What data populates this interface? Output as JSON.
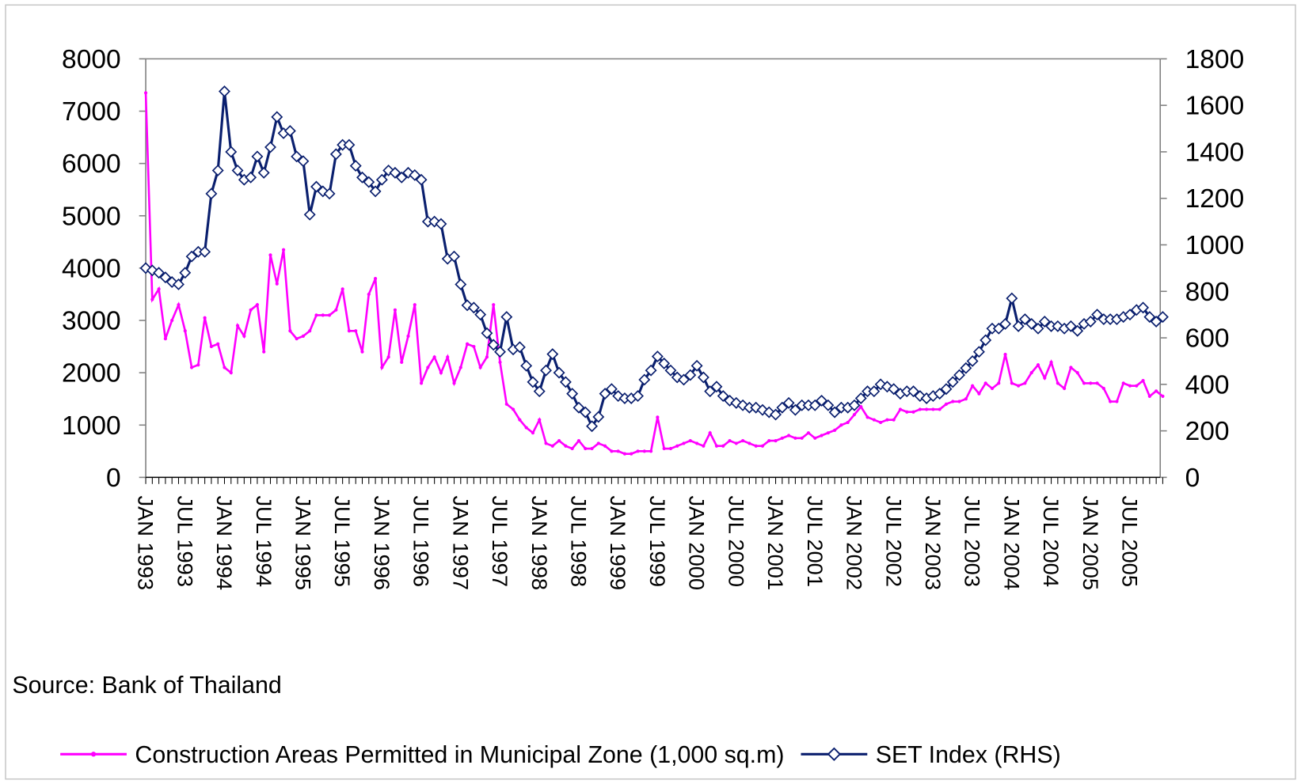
{
  "chart_data": {
    "type": "line",
    "source": "Source: Bank of Thailand",
    "categories": [
      "JAN 1993",
      null,
      null,
      null,
      null,
      null,
      "JUL 1993",
      null,
      null,
      null,
      null,
      null,
      "JAN 1994",
      null,
      null,
      null,
      null,
      null,
      "JUL 1994",
      null,
      null,
      null,
      null,
      null,
      "JAN 1995",
      null,
      null,
      null,
      null,
      null,
      "JUL 1995",
      null,
      null,
      null,
      null,
      null,
      "JAN 1996",
      null,
      null,
      null,
      null,
      null,
      "JUL 1996",
      null,
      null,
      null,
      null,
      null,
      "JAN 1997",
      null,
      null,
      null,
      null,
      null,
      "JUL 1997",
      null,
      null,
      null,
      null,
      null,
      "JAN 1998",
      null,
      null,
      null,
      null,
      null,
      "JUL 1998",
      null,
      null,
      null,
      null,
      null,
      "JAN 1999",
      null,
      null,
      null,
      null,
      null,
      "JUL 1999",
      null,
      null,
      null,
      null,
      null,
      "JAN 2000",
      null,
      null,
      null,
      null,
      null,
      "JUL 2000",
      null,
      null,
      null,
      null,
      null,
      "JAN 2001",
      null,
      null,
      null,
      null,
      null,
      "JUL 2001",
      null,
      null,
      null,
      null,
      null,
      "JAN 2002",
      null,
      null,
      null,
      null,
      null,
      "JUL 2002",
      null,
      null,
      null,
      null,
      null,
      "JAN 2003",
      null,
      null,
      null,
      null,
      null,
      "JUL 2003",
      null,
      null,
      null,
      null,
      null,
      "JAN 2004",
      null,
      null,
      null,
      null,
      null,
      "JUL 2004",
      null,
      null,
      null,
      null,
      null,
      "JAN 2005",
      null,
      null,
      null,
      null,
      null,
      "JUL 2005",
      null,
      null,
      null,
      null,
      null
    ],
    "series": [
      {
        "name": "Construction Areas Permitted in Municipal Zone (1,000 sq.m)",
        "color": "#ff00ff",
        "marker": "dot",
        "values": [
          7350,
          3400,
          3600,
          2650,
          3000,
          3300,
          2800,
          2100,
          2150,
          3050,
          2500,
          2550,
          2100,
          2000,
          2900,
          2700,
          3200,
          3300,
          2400,
          4250,
          3700,
          4350,
          2800,
          2650,
          2700,
          2800,
          3100,
          3100,
          3100,
          3200,
          3600,
          2800,
          2800,
          2400,
          3500,
          3800,
          2100,
          2300,
          3200,
          2200,
          2700,
          3300,
          1800,
          2100,
          2300,
          2000,
          2300,
          1800,
          2100,
          2550,
          2500,
          2100,
          2300,
          3300,
          2200,
          1400,
          1300,
          1100,
          950,
          850,
          1100,
          650,
          600,
          700,
          600,
          550,
          700,
          550,
          550,
          650,
          600,
          500,
          500,
          450,
          450,
          500,
          500,
          500,
          1150,
          550,
          550,
          600,
          650,
          700,
          650,
          600,
          850,
          600,
          600,
          700,
          650,
          700,
          650,
          600,
          600,
          700,
          700,
          750,
          800,
          750,
          750,
          850,
          750,
          800,
          850,
          900,
          1000,
          1050,
          1200,
          1350,
          1150,
          1100,
          1050,
          1100,
          1100,
          1300,
          1250,
          1250,
          1300,
          1300,
          1300,
          1300,
          1400,
          1450,
          1450,
          1500,
          1750,
          1600,
          1800,
          1700,
          1800,
          2350,
          1800,
          1750,
          1800,
          2000,
          2150,
          1900,
          2200,
          1800,
          1700,
          2100,
          2000,
          1800,
          1800,
          1800,
          1700,
          1450,
          1450,
          1800,
          1750,
          1750,
          1850,
          1550,
          1650,
          1550
        ]
      },
      {
        "name": "SET Index (RHS)",
        "color": "#0a1f6e",
        "marker": "diamond",
        "axis": "y2",
        "values": [
          900,
          890,
          880,
          860,
          840,
          830,
          880,
          950,
          970,
          970,
          1220,
          1320,
          1660,
          1400,
          1320,
          1280,
          1290,
          1380,
          1310,
          1420,
          1550,
          1480,
          1490,
          1380,
          1360,
          1130,
          1250,
          1230,
          1220,
          1390,
          1430,
          1430,
          1340,
          1290,
          1270,
          1230,
          1280,
          1320,
          1310,
          1290,
          1310,
          1300,
          1280,
          1100,
          1100,
          1090,
          940,
          950,
          830,
          740,
          730,
          700,
          620,
          570,
          540,
          690,
          550,
          560,
          480,
          410,
          370,
          460,
          530,
          450,
          410,
          360,
          300,
          280,
          220,
          260,
          360,
          380,
          350,
          340,
          340,
          350,
          420,
          460,
          520,
          490,
          460,
          430,
          420,
          440,
          480,
          430,
          370,
          390,
          350,
          330,
          320,
          310,
          300,
          300,
          290,
          280,
          270,
          300,
          320,
          290,
          310,
          310,
          310,
          330,
          310,
          280,
          300,
          300,
          310,
          340,
          370,
          370,
          400,
          390,
          380,
          360,
          370,
          370,
          350,
          340,
          350,
          360,
          380,
          410,
          440,
          470,
          500,
          540,
          590,
          640,
          640,
          660,
          770,
          650,
          680,
          660,
          640,
          670,
          650,
          650,
          640,
          650,
          630,
          660,
          670,
          700,
          680,
          680,
          680,
          690,
          700,
          720,
          730,
          690,
          670,
          690
        ]
      }
    ],
    "ylim": [
      0,
      8000
    ],
    "yticks": [
      0,
      1000,
      2000,
      3000,
      4000,
      5000,
      6000,
      7000,
      8000
    ],
    "y2lim": [
      0,
      1800
    ],
    "y2ticks": [
      0,
      200,
      400,
      600,
      800,
      1000,
      1200,
      1400,
      1600,
      1800
    ],
    "legend": "bottom"
  }
}
